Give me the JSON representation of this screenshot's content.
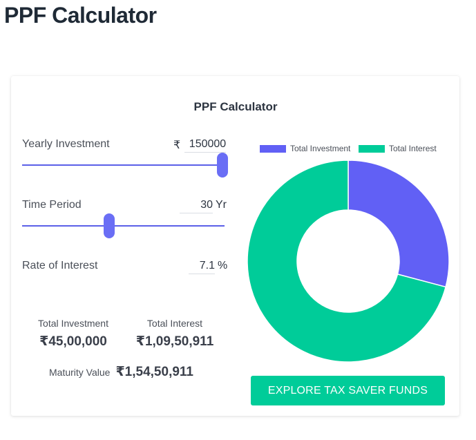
{
  "page": {
    "title": "PPF Calculator"
  },
  "calculator": {
    "title": "PPF Calculator",
    "yearly_investment": {
      "label": "Yearly Investment",
      "currency": "₹",
      "value": "150000",
      "slider_fraction": 0.99
    },
    "time_period": {
      "label": "Time Period",
      "value": "30",
      "unit": "Yr",
      "slider_fraction": 0.43
    },
    "rate_of_interest": {
      "label": "Rate of Interest",
      "value": "7.1",
      "unit": "%"
    }
  },
  "summary": {
    "total_investment": {
      "label": "Total Investment",
      "value": "₹45,00,000"
    },
    "total_interest": {
      "label": "Total Interest",
      "value": "₹1,09,50,911"
    },
    "maturity": {
      "label": "Maturity Value",
      "value": "₹1,54,50,911"
    }
  },
  "colors": {
    "investment": "#6160f5",
    "interest": "#00cc99",
    "accent": "#5b5fe8"
  },
  "chart_data": {
    "type": "pie",
    "donut": true,
    "categories": [
      "Total Investment",
      "Total Interest"
    ],
    "values": [
      4500000,
      10950911
    ],
    "legend_position": "top"
  },
  "cta": {
    "label": "EXPLORE TAX SAVER FUNDS"
  }
}
